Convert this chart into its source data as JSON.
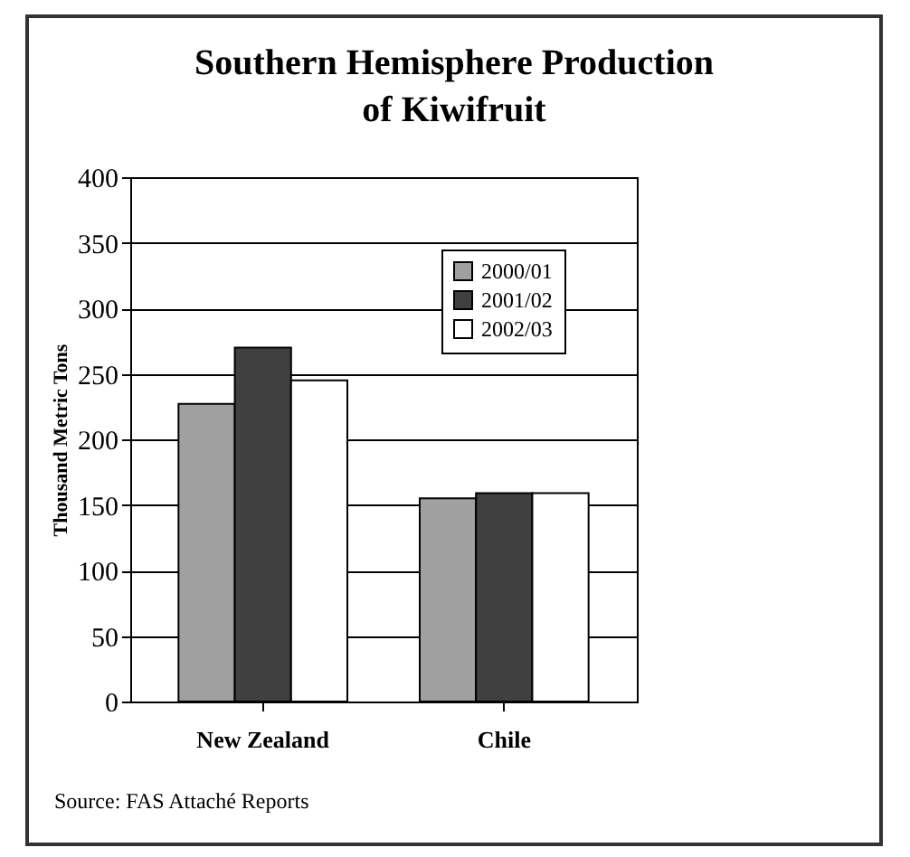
{
  "chart_data": {
    "type": "bar",
    "title": "Southern Hemisphere Production of Kiwifruit",
    "ylabel": "Thousand Metric Tons",
    "categories": [
      "New Zealand",
      "Chile"
    ],
    "series": [
      {
        "name": "2000/01",
        "color": "#a0a0a0",
        "values": [
          227,
          155
        ]
      },
      {
        "name": "2001/02",
        "color": "#404040",
        "values": [
          270,
          159
        ]
      },
      {
        "name": "2002/03",
        "color": "#ffffff",
        "values": [
          245,
          159
        ]
      }
    ],
    "ylim": [
      0,
      400
    ],
    "yticks": [
      0,
      50,
      100,
      150,
      200,
      250,
      300,
      350,
      400
    ],
    "grid": "y",
    "legend": "top right",
    "annotations": [
      "Source:  FAS Attaché Reports"
    ]
  }
}
